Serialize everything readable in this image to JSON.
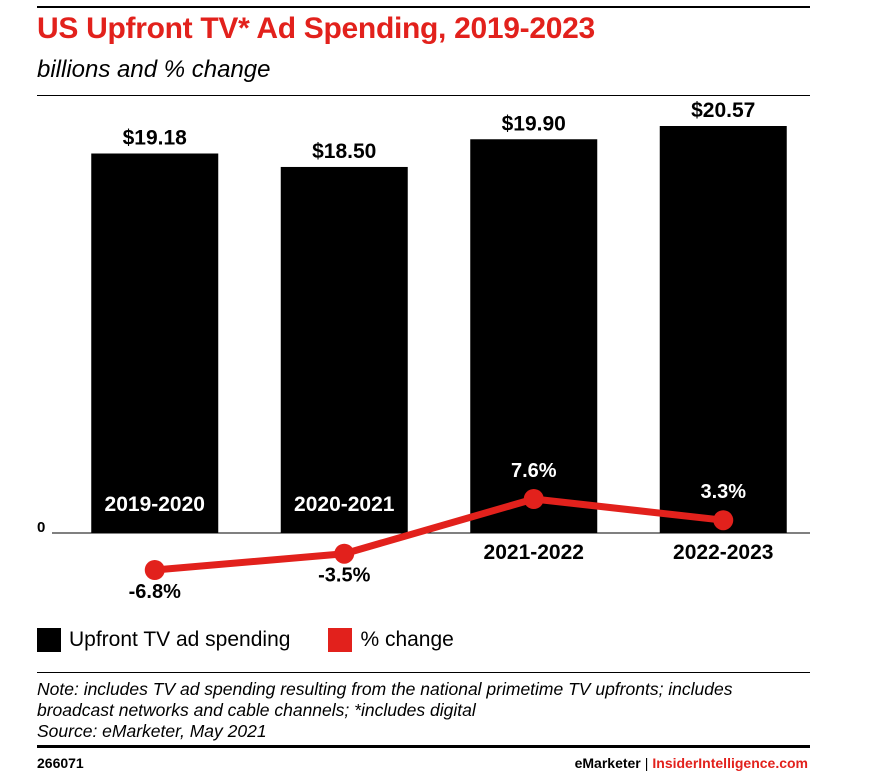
{
  "header": {
    "title": "US Upfront TV* Ad Spending, 2019-2023",
    "subtitle": "billions and % change"
  },
  "chart_data": {
    "type": "bar",
    "categories": [
      "2019-2020",
      "2020-2021",
      "2021-2022",
      "2022-2023"
    ],
    "series": [
      {
        "name": "Upfront TV ad spending",
        "type": "bar",
        "values": [
          19.18,
          18.5,
          19.9,
          20.57
        ],
        "labels": [
          "$19.18",
          "$18.50",
          "$19.90",
          "$20.57"
        ],
        "color": "#000000"
      },
      {
        "name": "% change",
        "type": "line",
        "values": [
          -6.8,
          -3.5,
          7.6,
          3.3
        ],
        "labels": [
          "-6.8%",
          "-3.5%",
          "7.6%",
          "3.3%"
        ],
        "color": "#e2211c"
      }
    ],
    "y_tick_label": "0",
    "ylim": [
      0,
      20.57
    ],
    "y2lim": [
      -6.8,
      7.6
    ],
    "grid": false,
    "legend_position": "bottom-left"
  },
  "legend": {
    "items": [
      {
        "label": "Upfront TV ad spending",
        "color": "#000000"
      },
      {
        "label": "% change",
        "color": "#e2211c"
      }
    ]
  },
  "notes": {
    "line1": "Note: includes TV ad spending resulting from the national primetime TV upfronts; includes",
    "line2": "broadcast networks and cable channels; *includes digital",
    "source": "Source: eMarketer, May 2021"
  },
  "footer": {
    "chart_id": "266071",
    "brand": "eMarketer",
    "separator": "|",
    "site": "InsiderIntelligence.com"
  }
}
